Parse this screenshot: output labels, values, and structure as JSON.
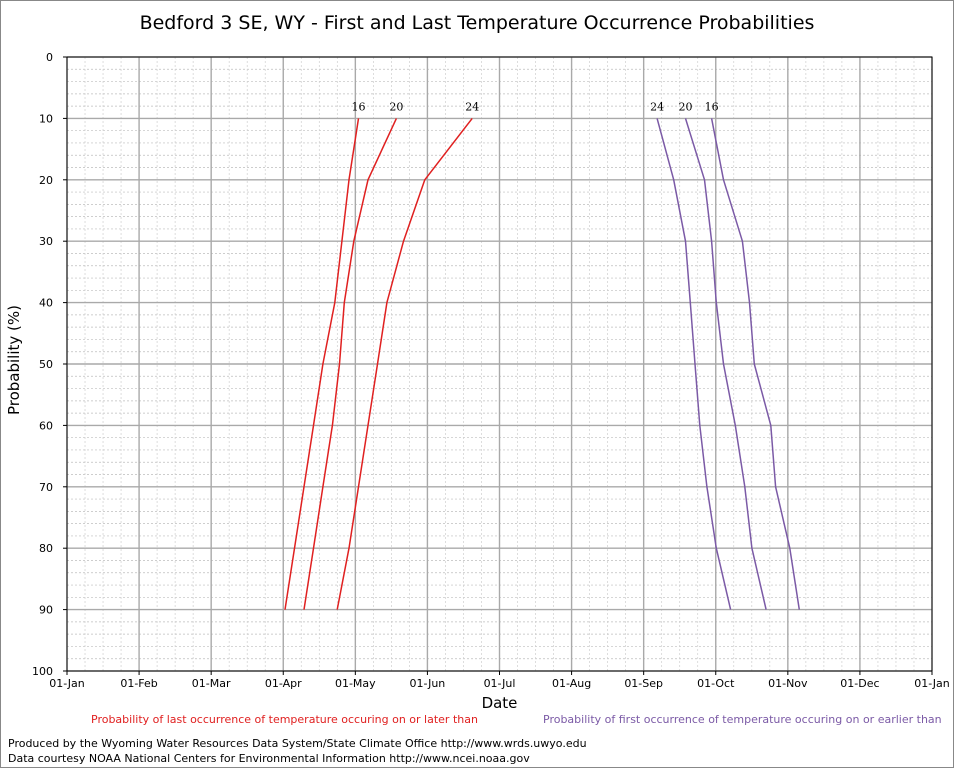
{
  "chart_data": {
    "type": "line",
    "title": "Bedford 3 SE, WY - First and Last Temperature Occurrence Probabilities",
    "xlabel": "Date",
    "ylabel": "Probability (%)",
    "x_tick_labels": [
      "01-Jan",
      "01-Feb",
      "01-Mar",
      "01-Apr",
      "01-May",
      "01-Jun",
      "01-Jul",
      "01-Aug",
      "01-Sep",
      "01-Oct",
      "01-Nov",
      "01-Dec",
      "01-Jan"
    ],
    "y_tick_labels": [
      "0",
      "10",
      "20",
      "30",
      "40",
      "50",
      "60",
      "70",
      "80",
      "90",
      "100"
    ],
    "ylim": [
      0,
      100
    ],
    "y_inverted": true,
    "grid": true,
    "probabilities": [
      10,
      20,
      30,
      40,
      50,
      60,
      70,
      80,
      90
    ],
    "series": [
      {
        "name": "16",
        "group": "last",
        "color": "#e02020",
        "values": [
          "2023-05-04",
          "2023-04-30",
          "2023-04-27",
          "2023-04-24",
          "2023-04-19",
          "2023-04-15",
          "2023-04-11",
          "2023-04-07",
          "2023-04-03"
        ]
      },
      {
        "name": "20",
        "group": "last",
        "color": "#e02020",
        "values": [
          "2023-05-20",
          "2023-05-08",
          "2023-05-02",
          "2023-04-28",
          "2023-04-26",
          "2023-04-23",
          "2023-04-19",
          "2023-04-15",
          "2023-04-11"
        ]
      },
      {
        "name": "24",
        "group": "last",
        "color": "#e02020",
        "values": [
          "2023-06-21",
          "2023-06-01",
          "2023-05-23",
          "2023-05-16",
          "2023-05-12",
          "2023-05-08",
          "2023-05-04",
          "2023-04-30",
          "2023-04-25"
        ]
      },
      {
        "name": "24",
        "group": "first",
        "color": "#7b5aa6",
        "values": [
          "2023-09-07",
          "2023-09-14",
          "2023-09-19",
          "2023-09-21",
          "2023-09-23",
          "2023-09-25",
          "2023-09-28",
          "2023-10-02",
          "2023-10-08"
        ]
      },
      {
        "name": "20",
        "group": "first",
        "color": "#7b5aa6",
        "values": [
          "2023-09-19",
          "2023-09-27",
          "2023-09-30",
          "2023-10-02",
          "2023-10-05",
          "2023-10-10",
          "2023-10-14",
          "2023-10-17",
          "2023-10-23"
        ]
      },
      {
        "name": "16",
        "group": "first",
        "color": "#7b5aa6",
        "values": [
          "2023-09-30",
          "2023-10-05",
          "2023-10-13",
          "2023-10-16",
          "2023-10-18",
          "2023-10-25",
          "2023-10-27",
          "2023-11-02",
          "2023-11-06"
        ]
      }
    ],
    "legend": [
      {
        "text": "Probability of last occurrence of temperature occuring on or later than",
        "color": "#e02020",
        "position": "bottom-left"
      },
      {
        "text": "Probability of first occurrence of temperature occuring on or earlier than",
        "color": "#7b5aa6",
        "position": "bottom-right"
      }
    ]
  },
  "credits": {
    "line1": "Produced by the Wyoming Water Resources Data System/State Climate Office http://www.wrds.uwyo.edu",
    "line2": "Data courtesy NOAA National Centers for Environmental Information http://www.ncei.noaa.gov"
  }
}
